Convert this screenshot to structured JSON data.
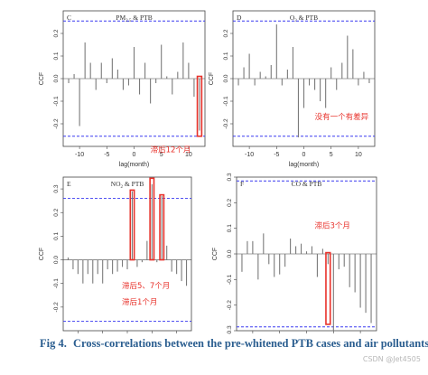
{
  "figure": {
    "caption_label": "Fig 4.",
    "caption_text": "Cross-correlations between the pre-whitened PTB cases and air pollutants.",
    "watermark": "CSDN @Jet4505",
    "colors": {
      "bar": "#7a7a7a",
      "ci": "#3a3af0",
      "highlight": "#e8322b",
      "axis": "#444444"
    }
  },
  "chart_data": [
    {
      "type": "bar",
      "panel_letter": "C",
      "title_main": "PM",
      "title_sub": "2.5",
      "title_rest": " & PTB",
      "xlabel": "lag(month)",
      "ylabel": "CCF",
      "xlim": [
        -13,
        13
      ],
      "ylim": [
        -0.3,
        0.3
      ],
      "xticks": [
        -10,
        -5,
        0,
        5,
        10
      ],
      "yticks": [
        -0.2,
        -0.1,
        0.0,
        0.1,
        0.2
      ],
      "ci": 0.255,
      "lags": [
        -12,
        -11,
        -10,
        -9,
        -8,
        -7,
        -6,
        -5,
        -4,
        -3,
        -2,
        -1,
        0,
        1,
        2,
        3,
        4,
        5,
        6,
        7,
        8,
        9,
        10,
        11,
        12
      ],
      "values": [
        -0.02,
        0.02,
        -0.21,
        0.16,
        0.07,
        -0.05,
        0.07,
        -0.02,
        0.09,
        0.04,
        -0.05,
        -0.03,
        0.14,
        -0.07,
        0.07,
        -0.11,
        -0.02,
        0.15,
        0.01,
        -0.07,
        0.03,
        0.16,
        0.07,
        -0.08,
        -0.23
      ],
      "highlights": [
        {
          "lag_from": 11.6,
          "lag_to": 12.4,
          "y_from": -0.255,
          "y_to": 0.01
        }
      ],
      "annotations": [
        {
          "text": "滞后12个月",
          "x": 3.0,
          "y": -0.325
        }
      ]
    },
    {
      "type": "bar",
      "panel_letter": "D",
      "title_main": "O",
      "title_sub": "3",
      "title_rest": " & PTB",
      "xlabel": "lag(month)",
      "ylabel": "CCF",
      "xlim": [
        -13,
        13
      ],
      "ylim": [
        -0.3,
        0.3
      ],
      "xticks": [
        -10,
        -5,
        0,
        5,
        10
      ],
      "yticks": [
        -0.2,
        -0.1,
        0.0,
        0.1,
        0.2
      ],
      "ci": 0.255,
      "lags": [
        -12,
        -11,
        -10,
        -9,
        -8,
        -7,
        -6,
        -5,
        -4,
        -3,
        -2,
        -1,
        0,
        1,
        2,
        3,
        4,
        5,
        6,
        7,
        8,
        9,
        10,
        11,
        12
      ],
      "values": [
        -0.03,
        0.05,
        0.11,
        -0.03,
        0.03,
        0.01,
        0.06,
        0.24,
        -0.03,
        0.04,
        0.14,
        -0.26,
        -0.13,
        -0.03,
        -0.05,
        -0.1,
        -0.13,
        0.05,
        -0.05,
        0.07,
        0.19,
        0.13,
        -0.03,
        0.03,
        -0.02
      ],
      "highlights": [],
      "annotations": [
        {
          "text": "没有一个有差异",
          "x": 2.0,
          "y": -0.18
        }
      ]
    },
    {
      "type": "bar",
      "panel_letter": "E",
      "title_main": "NO",
      "title_sub": "2",
      "title_rest": " & PTB",
      "xlabel": "lag(month)",
      "ylabel": "CCF",
      "xlim": [
        -13,
        13
      ],
      "ylim": [
        -0.3,
        0.35
      ],
      "xticks": [
        -10,
        -5,
        0,
        5,
        10
      ],
      "yticks": [
        -0.2,
        -0.1,
        0.0,
        0.1,
        0.2,
        0.3
      ],
      "ci": 0.26,
      "lags": [
        -12,
        -11,
        -10,
        -9,
        -8,
        -7,
        -6,
        -5,
        -4,
        -3,
        -2,
        -1,
        0,
        1,
        2,
        3,
        4,
        5,
        6,
        7,
        8,
        9,
        10,
        11,
        12
      ],
      "values": [
        0.01,
        -0.04,
        -0.06,
        -0.1,
        -0.06,
        -0.1,
        -0.06,
        -0.1,
        -0.04,
        -0.06,
        -0.05,
        -0.03,
        -0.04,
        0.29,
        -0.03,
        -0.01,
        0.08,
        0.32,
        -0.01,
        0.27,
        0.06,
        -0.05,
        -0.06,
        -0.09,
        -0.11
      ],
      "highlights": [
        {
          "lag_from": 0.6,
          "lag_to": 1.4,
          "y_from": 0.0,
          "y_to": 0.295
        },
        {
          "lag_from": 4.6,
          "lag_to": 5.4,
          "y_from": 0.0,
          "y_to": 0.345
        },
        {
          "lag_from": 6.6,
          "lag_to": 7.4,
          "y_from": 0.0,
          "y_to": 0.275
        }
      ],
      "annotations": [
        {
          "text": "滞后5、7个月",
          "x": -1.1,
          "y": -0.12
        },
        {
          "text": "滞后1个月",
          "x": -1.1,
          "y": -0.19
        }
      ]
    },
    {
      "type": "bar",
      "panel_letter": "F",
      "title_main": "CO",
      "title_sub": "",
      "title_rest": " & PTB",
      "xlabel": "lag(month)",
      "ylabel": "CCF",
      "xlim": [
        -13,
        13
      ],
      "ylim": [
        -0.3,
        0.3
      ],
      "xticks": [
        -10,
        -5,
        0,
        5,
        10
      ],
      "yticks": [
        -0.3,
        -0.2,
        -0.1,
        0.0,
        0.1,
        0.2,
        0.3
      ],
      "ci": 0.285,
      "lags": [
        -12,
        -11,
        -10,
        -9,
        -8,
        -7,
        -6,
        -5,
        -4,
        -3,
        -2,
        -1,
        0,
        1,
        2,
        3,
        4,
        5,
        6,
        7,
        8,
        9,
        10,
        11,
        12
      ],
      "values": [
        -0.07,
        0.05,
        0.05,
        -0.1,
        0.08,
        -0.04,
        -0.09,
        -0.08,
        -0.05,
        0.06,
        0.03,
        0.04,
        0.01,
        0.03,
        -0.09,
        0.02,
        -0.04,
        -0.3,
        -0.06,
        -0.05,
        -0.13,
        -0.15,
        -0.21,
        -0.23,
        -0.27
      ],
      "highlights": [
        {
          "lag_from": 3.6,
          "lag_to": 4.4,
          "y_from": -0.275,
          "y_to": 0.005
        }
      ],
      "annotations": [
        {
          "text": "滞后3个月",
          "x": 1.5,
          "y": 0.1
        }
      ]
    }
  ]
}
